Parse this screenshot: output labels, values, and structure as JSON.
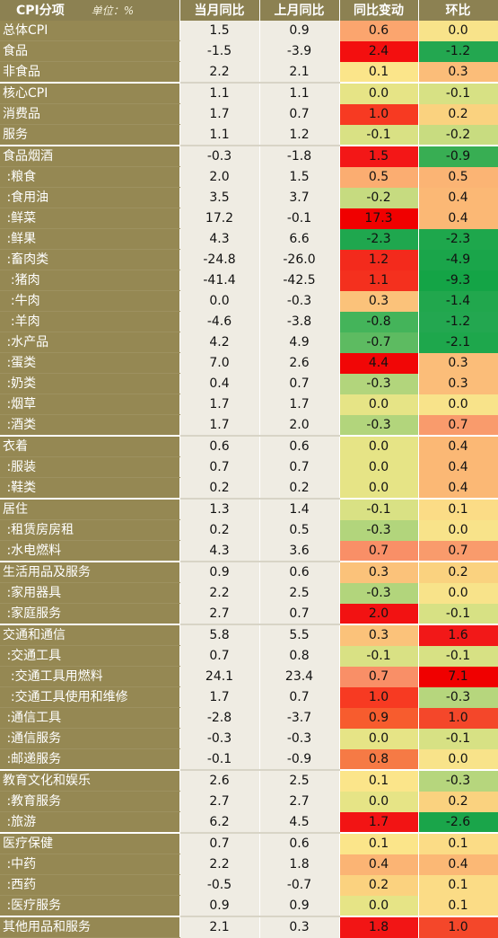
{
  "header": {
    "col_name": "CPI分项",
    "unit": "单位：%",
    "col_yoy": "当月同比",
    "col_prev_yoy": "上月同比",
    "col_yoy_change": "同比变动",
    "col_mom": "环比"
  },
  "rows": [
    {
      "name": "总体CPI",
      "yoy": "1.5",
      "prev": "0.9",
      "chg": "0.6",
      "mom": "0.0",
      "chg_color": "#fba56e",
      "mom_color": "#f8e38a",
      "group": true
    },
    {
      "name": "食品",
      "yoy": "-1.5",
      "prev": "-3.9",
      "chg": "2.4",
      "mom": "-1.2",
      "chg_color": "#f30f0f",
      "mom_color": "#23a750",
      "group": false
    },
    {
      "name": "非食品",
      "yoy": "2.2",
      "prev": "2.1",
      "chg": "0.1",
      "mom": "0.3",
      "chg_color": "#fbe58a",
      "mom_color": "#fbbd79",
      "group": false
    },
    {
      "name": "核心CPI",
      "yoy": "1.1",
      "prev": "1.1",
      "chg": "0.0",
      "mom": "-0.1",
      "chg_color": "#e6e486",
      "mom_color": "#d7e184",
      "group": true
    },
    {
      "name": "消费品",
      "yoy": "1.7",
      "prev": "0.7",
      "chg": "1.0",
      "mom": "0.2",
      "chg_color": "#f73a22",
      "mom_color": "#fad27f",
      "group": false
    },
    {
      "name": "服务",
      "yoy": "1.1",
      "prev": "1.2",
      "chg": "-0.1",
      "mom": "-0.2",
      "chg_color": "#d9e184",
      "mom_color": "#c8dc80",
      "group": false
    },
    {
      "name": "食品烟酒",
      "yoy": "-0.3",
      "prev": "-1.8",
      "chg": "1.5",
      "mom": "-0.9",
      "chg_color": "#f31717",
      "mom_color": "#38ae53",
      "group": true
    },
    {
      "name": " :粮食",
      "yoy": "2.0",
      "prev": "1.5",
      "chg": "0.5",
      "mom": "0.5",
      "chg_color": "#fbad71",
      "mom_color": "#fbb474",
      "group": false
    },
    {
      "name": " :食用油",
      "yoy": "3.5",
      "prev": "3.7",
      "chg": "-0.2",
      "mom": "0.4",
      "chg_color": "#c6db80",
      "mom_color": "#fbb875",
      "group": false
    },
    {
      "name": " :鲜菜",
      "yoy": "17.2",
      "prev": "-0.1",
      "chg": "17.3",
      "mom": "0.4",
      "chg_color": "#f00000",
      "mom_color": "#fbb875",
      "group": false
    },
    {
      "name": " :鲜果",
      "yoy": "4.3",
      "prev": "6.6",
      "chg": "-2.3",
      "mom": "-2.3",
      "chg_color": "#1fa74e",
      "mom_color": "#1ea74c",
      "group": false
    },
    {
      "name": " :畜肉类",
      "yoy": "-24.8",
      "prev": "-26.0",
      "chg": "1.2",
      "mom": "-4.9",
      "chg_color": "#f32a1c",
      "mom_color": "#1aa54a",
      "group": false
    },
    {
      "name": "  :猪肉",
      "yoy": "-41.4",
      "prev": "-42.5",
      "chg": "1.1",
      "mom": "-9.3",
      "chg_color": "#f4301e",
      "mom_color": "#14a446",
      "group": false
    },
    {
      "name": "  :牛肉",
      "yoy": "0.0",
      "prev": "-0.3",
      "chg": "0.3",
      "mom": "-1.4",
      "chg_color": "#fbc27a",
      "mom_color": "#21a74d",
      "group": false
    },
    {
      "name": "  :羊肉",
      "yoy": "-4.6",
      "prev": "-3.8",
      "chg": "-0.8",
      "mom": "-1.2",
      "chg_color": "#44b45a",
      "mom_color": "#23a750",
      "group": false
    },
    {
      "name": " :水产品",
      "yoy": "4.2",
      "prev": "4.9",
      "chg": "-0.7",
      "mom": "-2.1",
      "chg_color": "#5dbb61",
      "mom_color": "#1ea74c",
      "group": false
    },
    {
      "name": " :蛋类",
      "yoy": "7.0",
      "prev": "2.6",
      "chg": "4.4",
      "mom": "0.3",
      "chg_color": "#f10606",
      "mom_color": "#fbbd79",
      "group": false
    },
    {
      "name": " :奶类",
      "yoy": "0.4",
      "prev": "0.7",
      "chg": "-0.3",
      "mom": "0.3",
      "chg_color": "#b2d57c",
      "mom_color": "#fbbd79",
      "group": false
    },
    {
      "name": " :烟草",
      "yoy": "1.7",
      "prev": "1.7",
      "chg": "0.0",
      "mom": "0.0",
      "chg_color": "#e6e486",
      "mom_color": "#f8e38a",
      "group": false
    },
    {
      "name": " :酒类",
      "yoy": "1.7",
      "prev": "2.0",
      "chg": "-0.3",
      "mom": "0.7",
      "chg_color": "#b2d57c",
      "mom_color": "#f99b6c",
      "group": false
    },
    {
      "name": "衣着",
      "yoy": "0.6",
      "prev": "0.6",
      "chg": "0.0",
      "mom": "0.4",
      "chg_color": "#e6e486",
      "mom_color": "#fbb875",
      "group": true
    },
    {
      "name": " :服装",
      "yoy": "0.7",
      "prev": "0.7",
      "chg": "0.0",
      "mom": "0.4",
      "chg_color": "#e6e486",
      "mom_color": "#fbb875",
      "group": false
    },
    {
      "name": " :鞋类",
      "yoy": "0.2",
      "prev": "0.2",
      "chg": "0.0",
      "mom": "0.4",
      "chg_color": "#e6e486",
      "mom_color": "#fbb875",
      "group": false
    },
    {
      "name": "居住",
      "yoy": "1.3",
      "prev": "1.4",
      "chg": "-0.1",
      "mom": "0.1",
      "chg_color": "#d9e184",
      "mom_color": "#fbdc86",
      "group": true
    },
    {
      "name": " :租赁房房租",
      "yoy": "0.2",
      "prev": "0.5",
      "chg": "-0.3",
      "mom": "0.0",
      "chg_color": "#b2d57c",
      "mom_color": "#f8e38a",
      "group": false
    },
    {
      "name": " :水电燃料",
      "yoy": "4.3",
      "prev": "3.6",
      "chg": "0.7",
      "mom": "0.7",
      "chg_color": "#f98f67",
      "mom_color": "#f99b6c",
      "group": false
    },
    {
      "name": "生活用品及服务",
      "yoy": "0.9",
      "prev": "0.6",
      "chg": "0.3",
      "mom": "0.2",
      "chg_color": "#fbc27a",
      "mom_color": "#fad27f",
      "group": true
    },
    {
      "name": " :家用器具",
      "yoy": "2.2",
      "prev": "2.5",
      "chg": "-0.3",
      "mom": "0.0",
      "chg_color": "#b2d57c",
      "mom_color": "#f8e38a",
      "group": false
    },
    {
      "name": " :家庭服务",
      "yoy": "2.7",
      "prev": "0.7",
      "chg": "2.0",
      "mom": "-0.1",
      "chg_color": "#f21212",
      "mom_color": "#d7e184",
      "group": false
    },
    {
      "name": "交通和通信",
      "yoy": "5.8",
      "prev": "5.5",
      "chg": "0.3",
      "mom": "1.6",
      "chg_color": "#fbc27a",
      "mom_color": "#f21818",
      "group": true
    },
    {
      "name": " :交通工具",
      "yoy": "0.7",
      "prev": "0.8",
      "chg": "-0.1",
      "mom": "-0.1",
      "chg_color": "#d9e184",
      "mom_color": "#d7e184",
      "group": false
    },
    {
      "name": "  :交通工具用燃料",
      "yoy": "24.1",
      "prev": "23.4",
      "chg": "0.7",
      "mom": "7.1",
      "chg_color": "#f98f67",
      "mom_color": "#f00000",
      "group": false
    },
    {
      "name": "  :交通工具使用和维修",
      "yoy": "1.7",
      "prev": "0.7",
      "chg": "1.0",
      "mom": "-0.3",
      "chg_color": "#f73a22",
      "mom_color": "#b6d67d",
      "group": false
    },
    {
      "name": " :通信工具",
      "yoy": "-2.8",
      "prev": "-3.7",
      "chg": "0.9",
      "mom": "1.0",
      "chg_color": "#f75c2e",
      "mom_color": "#f4472a",
      "group": false
    },
    {
      "name": " :通信服务",
      "yoy": "-0.3",
      "prev": "-0.3",
      "chg": "0.0",
      "mom": "-0.1",
      "chg_color": "#e6e486",
      "mom_color": "#d7e184",
      "group": false
    },
    {
      "name": " :邮递服务",
      "yoy": "-0.1",
      "prev": "-0.9",
      "chg": "0.8",
      "mom": "0.0",
      "chg_color": "#f67a45",
      "mom_color": "#f8e38a",
      "group": false
    },
    {
      "name": "教育文化和娱乐",
      "yoy": "2.6",
      "prev": "2.5",
      "chg": "0.1",
      "mom": "-0.3",
      "chg_color": "#fbe58a",
      "mom_color": "#b6d67d",
      "group": true
    },
    {
      "name": " :教育服务",
      "yoy": "2.7",
      "prev": "2.7",
      "chg": "0.0",
      "mom": "0.2",
      "chg_color": "#e6e486",
      "mom_color": "#fad27f",
      "group": false
    },
    {
      "name": " :旅游",
      "yoy": "6.2",
      "prev": "4.5",
      "chg": "1.7",
      "mom": "-2.6",
      "chg_color": "#f21414",
      "mom_color": "#1aa54a",
      "group": false
    },
    {
      "name": "医疗保健",
      "yoy": "0.7",
      "prev": "0.6",
      "chg": "0.1",
      "mom": "0.1",
      "chg_color": "#fbe58a",
      "mom_color": "#fbdc86",
      "group": true
    },
    {
      "name": " :中药",
      "yoy": "2.2",
      "prev": "1.8",
      "chg": "0.4",
      "mom": "0.4",
      "chg_color": "#fbb474",
      "mom_color": "#fbb875",
      "group": false
    },
    {
      "name": " :西药",
      "yoy": "-0.5",
      "prev": "-0.7",
      "chg": "0.2",
      "mom": "0.1",
      "chg_color": "#fbd27f",
      "mom_color": "#fbdc86",
      "group": false
    },
    {
      "name": " :医疗服务",
      "yoy": "0.9",
      "prev": "0.9",
      "chg": "0.0",
      "mom": "0.1",
      "chg_color": "#e6e486",
      "mom_color": "#fbdc86",
      "group": false
    },
    {
      "name": "其他用品和服务",
      "yoy": "2.1",
      "prev": "0.3",
      "chg": "1.8",
      "mom": "1.0",
      "chg_color": "#f21515",
      "mom_color": "#f4472a",
      "group": true
    }
  ]
}
